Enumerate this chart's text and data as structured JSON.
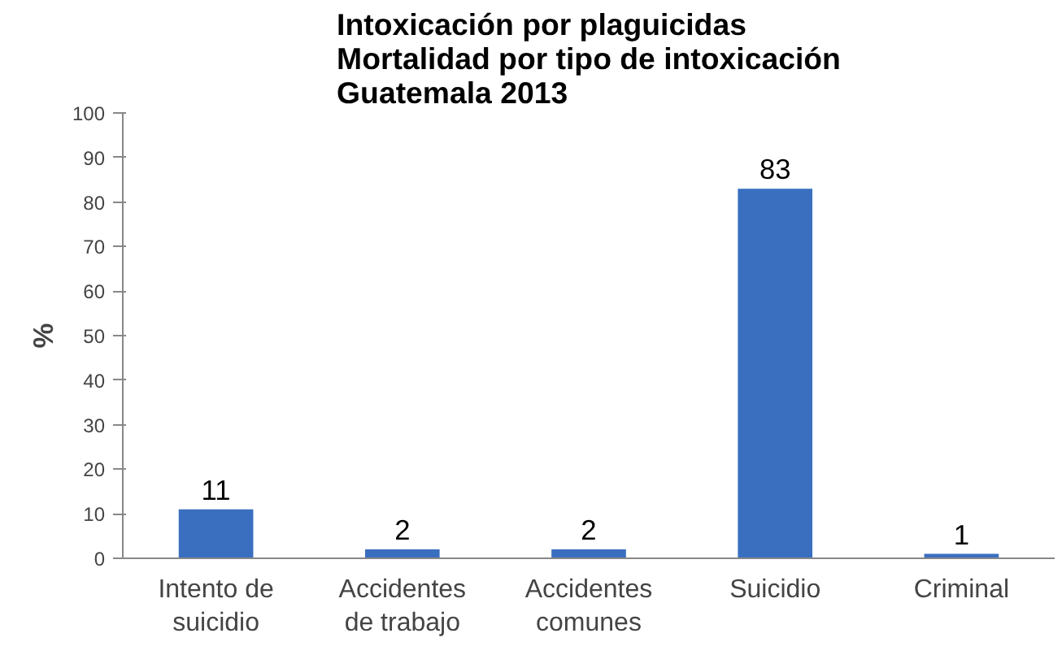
{
  "chart_data": {
    "type": "bar",
    "title": "Intoxicación por plaguicidas\nMortalidad por tipo de intoxicación\nGuatemala   2013",
    "categories": [
      "Intento de\nsuicidio",
      "Accidentes\nde trabajo",
      "Accidentes\ncomunes",
      "Suicidio",
      "Criminal"
    ],
    "values": [
      11,
      2,
      2,
      83,
      1
    ],
    "color": "#3a6fc0",
    "ylabel": "%",
    "ylim": [
      0,
      100
    ],
    "yticks": [
      0,
      10,
      20,
      30,
      40,
      50,
      60,
      70,
      80,
      90,
      100
    ],
    "grid": false,
    "data_labels": true
  }
}
